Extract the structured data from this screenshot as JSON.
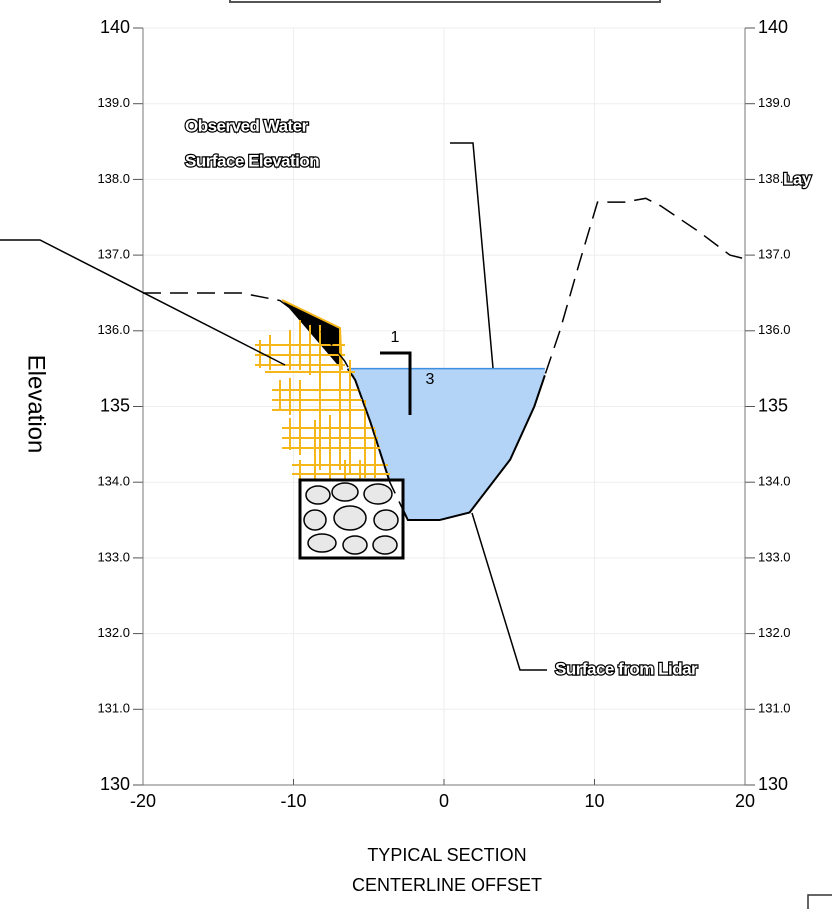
{
  "chart_data": {
    "type": "line",
    "ylabel": "Elevation",
    "xlabel": [
      "TYPICAL SECTION",
      "CENTERLINE OFFSET"
    ],
    "xlim": [
      -20,
      20
    ],
    "xticks": [
      -20,
      -10,
      0,
      10,
      20
    ],
    "ylim": [
      130,
      140
    ],
    "yticks": [
      130,
      {
        "value": 131,
        "label": "131.0"
      },
      {
        "value": 132,
        "label": "132.0"
      },
      {
        "value": 133,
        "label": "133.0"
      },
      {
        "value": 134,
        "label": "134.0"
      },
      135,
      {
        "value": 136,
        "label": "136.0"
      },
      {
        "value": 137,
        "label": "137.0"
      },
      {
        "value": 138,
        "label": "138.0"
      },
      {
        "value": 139,
        "label": "139.0"
      },
      140
    ],
    "y2lim": [
      130,
      140
    ],
    "y2ticks": [
      130,
      {
        "value": 131,
        "label": "131.0"
      },
      {
        "value": 132,
        "label": "132.0"
      },
      {
        "value": 133,
        "label": "133.0"
      },
      {
        "value": 134,
        "label": "134.0"
      },
      135,
      {
        "value": 136,
        "label": "136.0"
      },
      {
        "value": 137,
        "label": "137.0"
      },
      {
        "value": 138,
        "label": "138.0"
      },
      {
        "value": 139,
        "label": "139.0"
      },
      140
    ],
    "grid": true,
    "series": [
      {
        "name": "Surface from Lidar",
        "color": "#000000",
        "x": [
          -20,
          -13.5,
          -10.9,
          -8.2,
          -6.6,
          -5.9,
          -4.9,
          -3.6,
          -2.4,
          -0.3,
          1.7,
          4.4,
          6.0,
          7.7,
          9.0,
          10.2,
          12.0,
          13.4,
          14.4,
          17.0,
          19.0,
          20
        ],
        "values": [
          136.5,
          136.5,
          136.4,
          136.0,
          135.6,
          135.35,
          134.8,
          134.0,
          133.5,
          133.5,
          133.6,
          134.3,
          135.0,
          136.0,
          136.9,
          137.7,
          137.7,
          137.75,
          137.65,
          137.3,
          137.0,
          136.95
        ]
      }
    ],
    "water_surface": {
      "name": [
        "Observed Water",
        "Surface Elevation"
      ],
      "value": 135.5,
      "xrange": [
        -6.4,
        6.7
      ],
      "color": "#b3d4f7"
    },
    "slope_labels": [
      "1",
      "3"
    ],
    "cropped_labels": [
      "Lay"
    ]
  }
}
